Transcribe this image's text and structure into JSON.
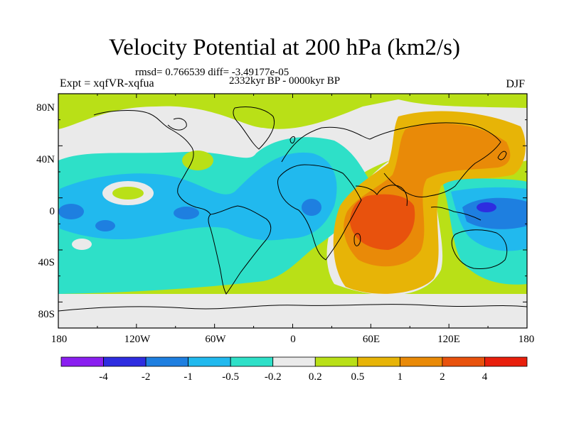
{
  "figure": {
    "title": "Velocity Potential at 200 hPa (km2/s)",
    "stats": "rmsd= 0.766539 diff= -3.49177e-05",
    "experiment": "Expt = xqfVR-xqfua",
    "period": "2332kyr BP - 0000kyr BP",
    "season": "DJF"
  },
  "axes": {
    "x_ticks": [
      "180",
      "120W",
      "60W",
      "0",
      "60E",
      "120E",
      "180"
    ],
    "y_ticks": [
      "80N",
      "40N",
      "0",
      "40S",
      "80S"
    ]
  },
  "colorbar": {
    "colors": [
      "#8a1ff0",
      "#2e2de0",
      "#1e7fe0",
      "#21b9ee",
      "#2ee0c8",
      "#eaeaea",
      "#b9e017",
      "#e7b407",
      "#e98a08",
      "#e8520d",
      "#e81f0c"
    ],
    "labels": [
      "-4",
      "-2",
      "-1",
      "-0.5",
      "-0.2",
      "0.2",
      "0.5",
      "1",
      "2",
      "4"
    ]
  },
  "chart_data": {
    "type": "heatmap",
    "title": "Velocity Potential at 200 hPa (km2/s)",
    "subtitle": "rmsd= 0.766539 diff= -3.49177e-05",
    "left_label": "Expt = xqfVR-xqfua",
    "center_label": "2332kyr BP - 0000kyr BP",
    "right_label": "DJF",
    "xlim": [
      -180,
      180
    ],
    "ylim": [
      -90,
      90
    ],
    "contour_levels": [
      -4,
      -2,
      -1,
      -0.5,
      -0.2,
      0.2,
      0.5,
      1,
      2,
      4
    ],
    "fill_colors": [
      "#8a1ff0",
      "#2e2de0",
      "#1e7fe0",
      "#21b9ee",
      "#2ee0c8",
      "#eaeaea",
      "#b9e017",
      "#e7b407",
      "#e98a08",
      "#e8520d",
      "#e81f0c"
    ],
    "background_color": "#b9e017"
  }
}
